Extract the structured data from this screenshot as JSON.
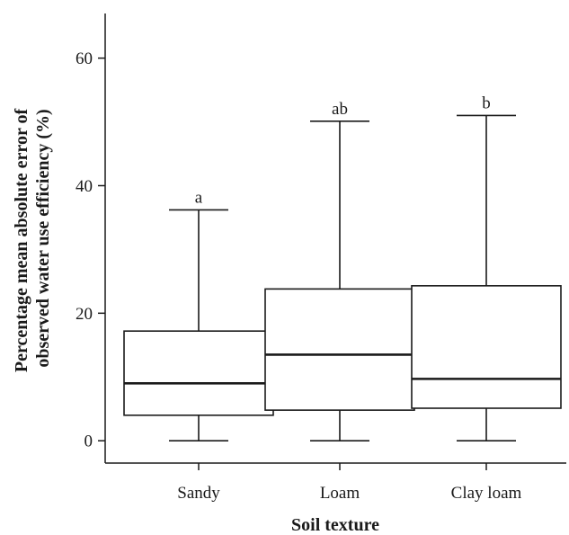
{
  "chart_data": {
    "type": "box",
    "title": "",
    "xlabel": "Soil texture",
    "ylabel_lines": [
      "Percentage mean absolute error of",
      "observed water use efficiency (%)"
    ],
    "ylim": [
      -3.5,
      67
    ],
    "yticks": [
      0,
      20,
      40,
      60
    ],
    "ytick_labels": [
      "0",
      "20",
      "40",
      "60"
    ],
    "categories": [
      "Sandy",
      "Loam",
      "Clay loam"
    ],
    "boxes": [
      {
        "category": "Sandy",
        "min": 0,
        "q1": 4,
        "median": 9,
        "q3": 17.2,
        "max": 36.2,
        "group": "a"
      },
      {
        "category": "Loam",
        "min": 0,
        "q1": 4.8,
        "median": 13.5,
        "q3": 23.8,
        "max": 50.1,
        "group": "ab"
      },
      {
        "category": "Clay loam",
        "min": 0,
        "q1": 5.1,
        "median": 9.7,
        "q3": 24.3,
        "max": 51,
        "group": "b"
      }
    ],
    "grid": false,
    "legend": "none"
  }
}
